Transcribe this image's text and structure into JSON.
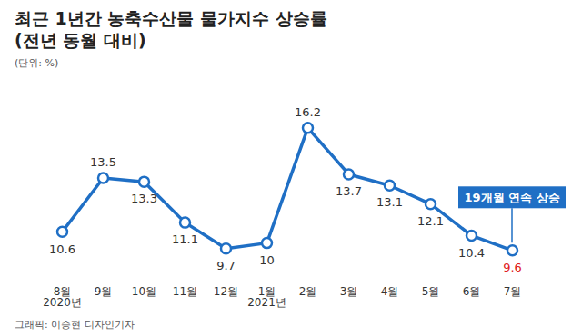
{
  "chart_data": {
    "type": "line",
    "title": "최근 1년간 농축수산물 물가지수 상승률",
    "subtitle": "(전년 동월 대비)",
    "unit": "(단위: %)",
    "caption": "그래픽: 이승현 디자인기자",
    "annotation": "19개월 연속 상승",
    "categories": [
      "8월\n2020년",
      "9월",
      "10월",
      "11월",
      "12월",
      "1월\n2021년",
      "2월",
      "3월",
      "4월",
      "5월",
      "6월",
      "7월"
    ],
    "values": [
      10.6,
      13.5,
      13.3,
      11.1,
      9.7,
      10,
      16.2,
      13.7,
      13.1,
      12.1,
      10.4,
      9.6
    ],
    "color": "#1f6fc5",
    "colors": [
      "#333333",
      "#333333",
      "#333333",
      "#333333",
      "#333333",
      "#333333",
      "#333333",
      "#333333",
      "#333333",
      "#333333",
      "#333333",
      "#e02020"
    ],
    "ylim": [
      8,
      17
    ],
    "grid": false,
    "marker": "circle",
    "data_labels": true,
    "tick_labels": "x"
  }
}
